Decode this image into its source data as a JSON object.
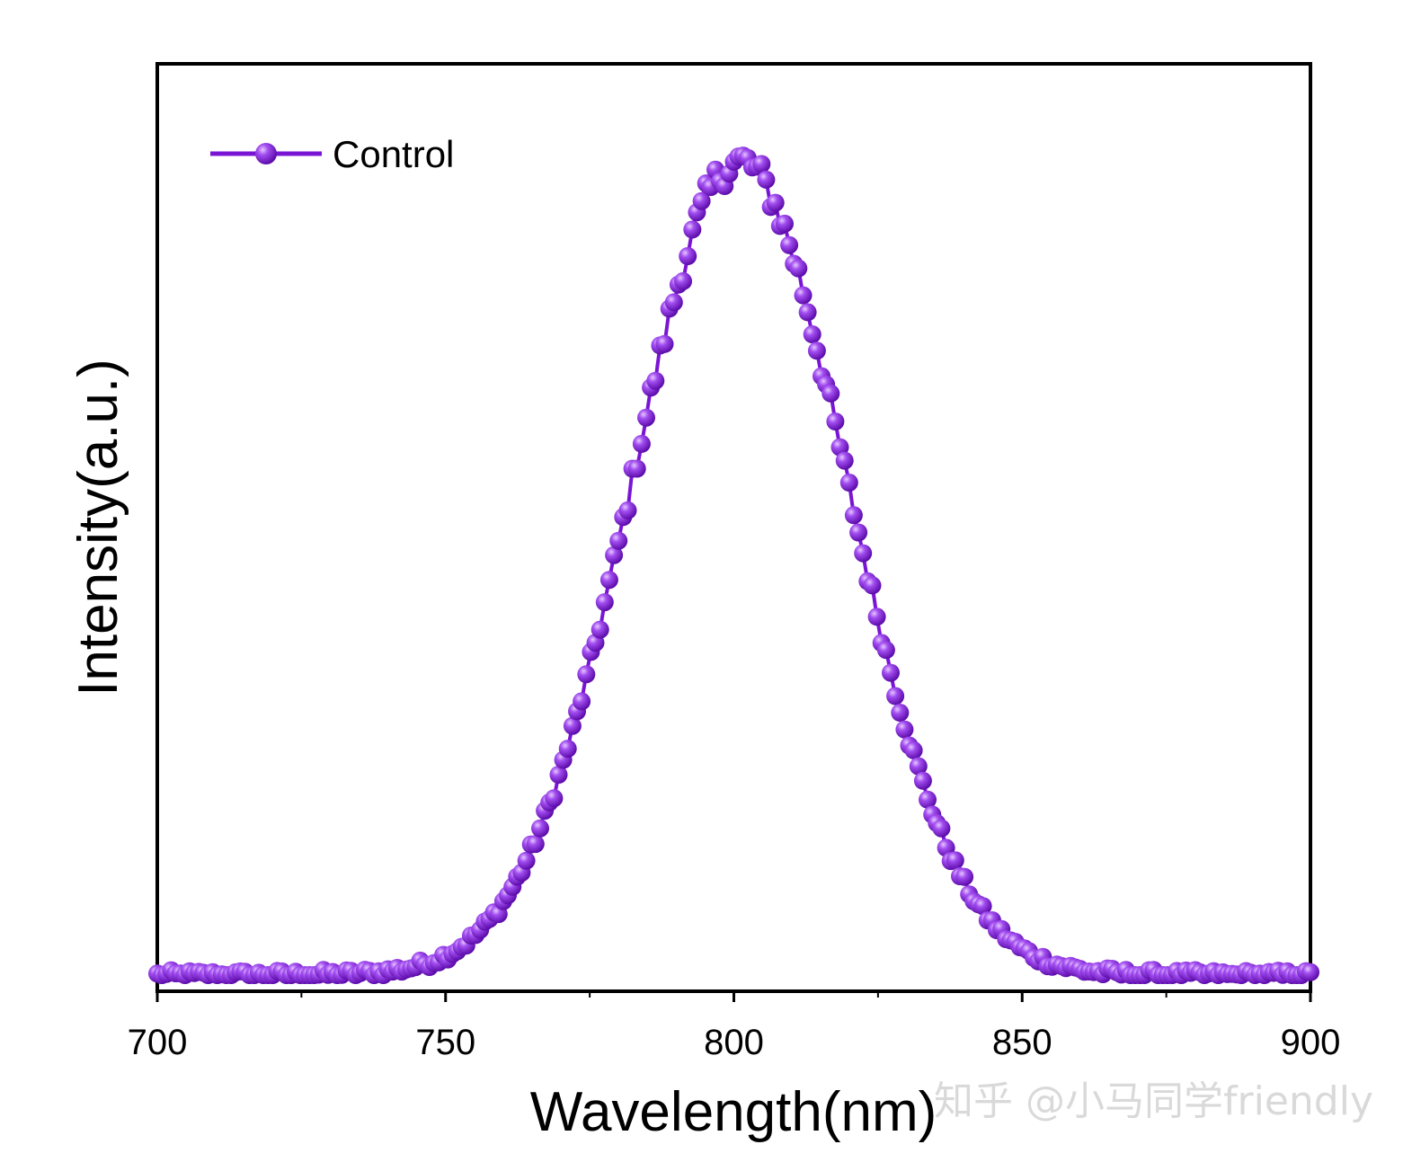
{
  "chart_data": {
    "type": "line",
    "title": "",
    "xlabel": "Wavelength(nm)",
    "ylabel": "Intensity(a.u.)",
    "xlim": [
      700,
      900
    ],
    "ylim": [
      0,
      1.12
    ],
    "x_ticks": [
      700,
      750,
      800,
      850,
      900
    ],
    "x_tick_labels": [
      "700",
      "750",
      "800",
      "850",
      "900"
    ],
    "x_minor_ticks": [
      725,
      775,
      825,
      875
    ],
    "y_ticks_labeled": false,
    "grid": false,
    "legend_position": "top-left",
    "series": [
      {
        "name": "Control",
        "color": "#7a14d4",
        "marker": "circle",
        "model": "gaussian",
        "peak_wavelength_nm": 801,
        "peak_intensity": 1.0,
        "fwhm_nm": 44,
        "baseline": 0.0,
        "x_start": 700,
        "x_end": 900,
        "x_step": 0.8
      }
    ]
  },
  "watermark": "知乎 @小马同学friendly"
}
